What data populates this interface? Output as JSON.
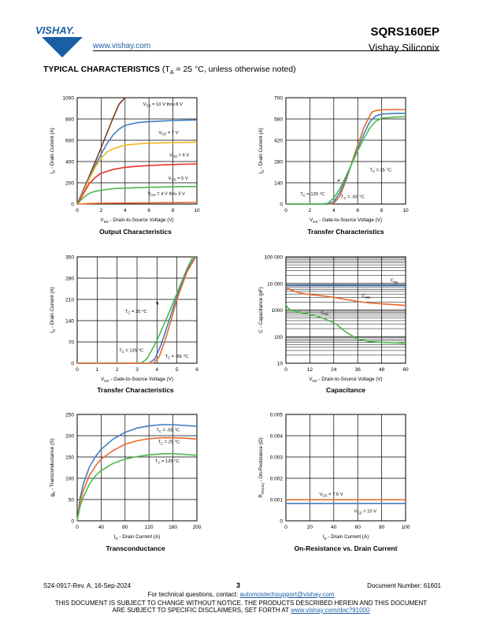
{
  "header": {
    "logo_text": "VISHAY.",
    "url": "www.vishay.com",
    "part_number": "SQRS160EP",
    "company": "Vishay Siliconix"
  },
  "section": {
    "title": "TYPICAL CHARACTERISTICS",
    "condition_prefix": "(T",
    "condition_sub": "A",
    "condition_rest": " = 25 °C, unless otherwise noted)"
  },
  "colors": {
    "blue": "#3e7fc1",
    "orange": "#ea6a2a",
    "gold": "#f2b71f",
    "red": "#e8322c",
    "green": "#4cb848",
    "brown": "#7a3c20",
    "link": "#1f5fa8"
  },
  "chart_data": [
    {
      "id": "output",
      "type": "line",
      "title": "Output Characteristics",
      "xlabel": "V_DS - Drain-to-Source Voltage (V)",
      "ylabel": "I_D - Drain Current (A)",
      "xlim": [
        0,
        10
      ],
      "ylim": [
        0,
        1000
      ],
      "xticks": [
        0,
        2,
        4,
        6,
        8,
        10
      ],
      "yticks": [
        0,
        200,
        400,
        600,
        800,
        1000
      ],
      "grid": true,
      "series": [
        {
          "color": "#7a3c20",
          "x": [
            0,
            0.5,
            1,
            1.5,
            2,
            2.5,
            3,
            3.5,
            4
          ],
          "y": [
            0,
            130,
            260,
            395,
            530,
            670,
            810,
            940,
            1000
          ]
        },
        {
          "color": "#3e7fc1",
          "x": [
            0,
            0.5,
            1,
            1.5,
            2,
            2.5,
            3,
            3.5,
            4,
            5,
            6,
            7,
            8,
            9,
            10
          ],
          "y": [
            0,
            125,
            245,
            360,
            470,
            570,
            650,
            705,
            740,
            765,
            775,
            780,
            785,
            788,
            790
          ]
        },
        {
          "color": "#f2b71f",
          "x": [
            0,
            0.5,
            1,
            1.5,
            2,
            2.5,
            3,
            4,
            5,
            6,
            7,
            8,
            10
          ],
          "y": [
            0,
            110,
            235,
            345,
            430,
            490,
            520,
            555,
            565,
            572,
            575,
            578,
            582
          ]
        },
        {
          "color": "#e8322c",
          "x": [
            0,
            0.5,
            1,
            1.5,
            2,
            3,
            4,
            5,
            6,
            7,
            8,
            10
          ],
          "y": [
            0,
            95,
            190,
            250,
            290,
            325,
            345,
            355,
            362,
            368,
            372,
            378
          ]
        },
        {
          "color": "#4cb848",
          "x": [
            0,
            0.5,
            1,
            1.5,
            2,
            3,
            4,
            5,
            6,
            7,
            8,
            10
          ],
          "y": [
            0,
            60,
            100,
            120,
            130,
            145,
            150,
            155,
            158,
            160,
            162,
            165
          ]
        },
        {
          "color": "#ea6a2a",
          "x": [
            0,
            1,
            2,
            4,
            6,
            8,
            10
          ],
          "y": [
            0,
            5,
            8,
            10,
            12,
            13,
            15
          ]
        }
      ],
      "annotations": [
        {
          "sym": "V",
          "sub": "GS",
          "text": " = 10 V thru 8 V",
          "x": 5.5,
          "y": 925
        },
        {
          "sym": "V",
          "sub": "GS",
          "text": " = 7 V",
          "x": 6.8,
          "y": 660
        },
        {
          "sym": "V",
          "sub": "GS",
          "text": " = 6 V",
          "x": 7.7,
          "y": 450
        },
        {
          "sym": "V",
          "sub": "GS",
          "text": " = 5 V",
          "x": 7.6,
          "y": 230
        },
        {
          "sym": "V",
          "sub": "GS",
          "text": " = 4 V thru 3 V",
          "x": 5.9,
          "y": 85
        }
      ]
    },
    {
      "id": "transfer-1",
      "type": "line",
      "title": "Transfer Characteristics",
      "xlabel": "V_GS - Gate-to-Source Voltage (V)",
      "ylabel": "I_D - Drain Current (A)",
      "xlim": [
        0,
        10
      ],
      "ylim": [
        0,
        700
      ],
      "xticks": [
        0,
        2,
        4,
        6,
        8,
        10
      ],
      "yticks": [
        0,
        140,
        280,
        420,
        560,
        700
      ],
      "grid": true,
      "series": [
        {
          "color": "#ea6a2a",
          "x": [
            0,
            3.7,
            4,
            4.5,
            5,
            5.5,
            6,
            6.5,
            7,
            7.2,
            7.5,
            8,
            9,
            10
          ],
          "y": [
            0,
            0,
            5,
            50,
            150,
            270,
            390,
            500,
            580,
            605,
            615,
            620,
            622,
            622
          ]
        },
        {
          "color": "#3e7fc1",
          "x": [
            0,
            3.5,
            4,
            4.5,
            5,
            5.5,
            6,
            6.5,
            7,
            7.5,
            8,
            9,
            10
          ],
          "y": [
            0,
            0,
            15,
            75,
            165,
            265,
            365,
            460,
            540,
            580,
            592,
            597,
            598
          ]
        },
        {
          "color": "#4cb848",
          "x": [
            0,
            3,
            3.5,
            4,
            4.5,
            5,
            5.5,
            6,
            6.5,
            7,
            7.5,
            8,
            9,
            10
          ],
          "y": [
            0,
            0,
            5,
            40,
            100,
            180,
            265,
            350,
            430,
            500,
            545,
            565,
            572,
            575
          ]
        }
      ],
      "annotations": [
        {
          "sym": "T",
          "sub": "C",
          "text": " = 25 °C",
          "x": 7.0,
          "y": 215
        },
        {
          "sym": "T",
          "sub": "C",
          "text": " = 125 °C",
          "x": 1.2,
          "y": 58
        },
        {
          "sym": "T",
          "sub": "C",
          "text": " = -55 °C",
          "x": 4.6,
          "y": 40
        }
      ]
    },
    {
      "id": "transfer-2",
      "type": "line",
      "title": "Transfer Characteristics",
      "xlabel": "V_GS - Gate-to-Source Voltage (V)",
      "ylabel": "I_D - Drain Current (A)",
      "xlim": [
        0,
        6
      ],
      "ylim": [
        0,
        350
      ],
      "xticks": [
        0,
        1,
        2,
        3,
        4,
        5,
        6
      ],
      "yticks": [
        0,
        70,
        140,
        210,
        280,
        350
      ],
      "grid": true,
      "series": [
        {
          "color": "#4cb848",
          "x": [
            0,
            3.2,
            3.5,
            4,
            4.5,
            5,
            5.5,
            5.8
          ],
          "y": [
            0,
            0,
            15,
            75,
            150,
            230,
            310,
            350
          ]
        },
        {
          "color": "#3e7fc1",
          "x": [
            0,
            3.6,
            3.9,
            4.2,
            4.5,
            5,
            5.5,
            5.9
          ],
          "y": [
            0,
            0,
            15,
            60,
            120,
            220,
            305,
            350
          ]
        },
        {
          "color": "#ea6a2a",
          "x": [
            0,
            3.8,
            4.1,
            4.4,
            4.7,
            5,
            5.5,
            5.95
          ],
          "y": [
            0,
            0,
            20,
            75,
            140,
            210,
            300,
            350
          ]
        }
      ],
      "annotations": [
        {
          "sym": "T",
          "sub": "C",
          "text": " = 25 °C",
          "x": 2.4,
          "y": 166
        },
        {
          "sym": "T",
          "sub": "C",
          "text": " = 125 °C",
          "x": 2.1,
          "y": 38
        },
        {
          "sym": "T",
          "sub": "C",
          "text": " = -55 °C",
          "x": 4.4,
          "y": 18
        }
      ]
    },
    {
      "id": "capacitance",
      "type": "line",
      "title": "Capacitance",
      "xlabel": "V_DS - Drain-to-Source Voltage (V)",
      "ylabel": "C - Capacitance (pF)",
      "xlim": [
        0,
        60
      ],
      "ylim": [
        10,
        100000
      ],
      "yscale": "log",
      "xticks": [
        0,
        12,
        24,
        36,
        48,
        60
      ],
      "yticks": [
        10,
        100,
        1000,
        10000,
        100000
      ],
      "ytick_labels": [
        "10",
        "100",
        "1000",
        "10 000",
        "100 000"
      ],
      "grid": true,
      "series": [
        {
          "name": "C_iss",
          "color": "#3e7fc1",
          "x": [
            0,
            6,
            12,
            20,
            30,
            40,
            50,
            60
          ],
          "y": [
            8600,
            8500,
            8450,
            8400,
            8380,
            8360,
            8340,
            8320
          ]
        },
        {
          "name": "C_oss",
          "color": "#ea6a2a",
          "x": [
            0,
            3,
            6,
            10,
            15,
            20,
            25,
            30,
            36,
            42,
            48,
            54,
            60
          ],
          "y": [
            7000,
            5500,
            4600,
            4000,
            3600,
            3300,
            2900,
            2500,
            2100,
            1850,
            1700,
            1600,
            1500
          ]
        },
        {
          "name": "C_rss",
          "color": "#4cb848",
          "x": [
            0,
            1,
            3,
            6,
            10,
            15,
            20,
            25,
            30,
            36,
            42,
            48,
            54,
            60
          ],
          "y": [
            1600,
            1200,
            950,
            850,
            750,
            600,
            450,
            300,
            150,
            80,
            65,
            60,
            58,
            55
          ]
        }
      ],
      "annotations": [
        {
          "sym": "C",
          "sub": "iss",
          "text": "",
          "x": 52.5,
          "y": 11500
        },
        {
          "sym": "C",
          "sub": "oss",
          "text": "",
          "x": 38,
          "y": 2950
        },
        {
          "sym": "C",
          "sub": "rss",
          "text": "",
          "x": 17.5,
          "y": 720
        }
      ]
    },
    {
      "id": "transconductance",
      "type": "line",
      "title": "Transconductance",
      "xlabel": "I_D - Drain Current (A)",
      "ylabel": "g_fs - Transconductance (S)",
      "xlim": [
        0,
        200
      ],
      "ylim": [
        0,
        250
      ],
      "xticks": [
        0,
        40,
        80,
        120,
        160,
        200
      ],
      "yticks": [
        0,
        50,
        100,
        150,
        200,
        250
      ],
      "grid": true,
      "series": [
        {
          "color": "#3e7fc1",
          "x": [
            0,
            5,
            10,
            20,
            30,
            40,
            60,
            80,
            100,
            120,
            140,
            160,
            180,
            200
          ],
          "y": [
            0,
            55,
            85,
            125,
            150,
            168,
            192,
            208,
            218,
            223,
            226,
            226,
            224,
            222
          ]
        },
        {
          "color": "#ea6a2a",
          "x": [
            0,
            5,
            10,
            20,
            30,
            40,
            60,
            80,
            100,
            120,
            140,
            160,
            180,
            200
          ],
          "y": [
            0,
            45,
            70,
            105,
            128,
            145,
            165,
            180,
            188,
            193,
            195,
            195,
            194,
            192
          ]
        },
        {
          "color": "#4cb848",
          "x": [
            0,
            5,
            10,
            20,
            30,
            40,
            60,
            80,
            100,
            120,
            140,
            160,
            180,
            200
          ],
          "y": [
            0,
            35,
            55,
            85,
            105,
            118,
            135,
            145,
            151,
            155,
            157,
            158,
            156,
            154
          ]
        }
      ],
      "annotations": [
        {
          "sym": "T",
          "sub": "C",
          "text": " = -55 °C",
          "x": 132,
          "y": 210
        },
        {
          "sym": "T",
          "sub": "C",
          "text": " = 25 °C",
          "x": 135,
          "y": 182
        },
        {
          "sym": "T",
          "sub": "C",
          "text": " = 125 °C",
          "x": 130,
          "y": 137
        }
      ]
    },
    {
      "id": "on-resistance",
      "type": "line",
      "title": "On-Resistance vs. Drain Current",
      "xlabel": "I_D - Drain Current (A)",
      "ylabel": "R_DS(on) - On-Resistance (Ω)",
      "xlim": [
        0,
        100
      ],
      "ylim": [
        0,
        0.005
      ],
      "xticks": [
        0,
        20,
        40,
        60,
        80,
        100
      ],
      "ytick_labels": [
        "0",
        "0.001",
        "0.002",
        "0.003",
        "0.004",
        "0.005"
      ],
      "yticks": [
        0,
        0.001,
        0.002,
        0.003,
        0.004,
        0.005
      ],
      "grid": true,
      "series": [
        {
          "color": "#ea6a2a",
          "x": [
            0,
            20,
            40,
            60,
            80,
            100
          ],
          "y": [
            0.00099,
            0.00099,
            0.00099,
            0.00099,
            0.00099,
            0.00099
          ]
        },
        {
          "color": "#3e7fc1",
          "x": [
            0,
            20,
            40,
            60,
            80,
            100
          ],
          "y": [
            0.00081,
            0.00081,
            0.00081,
            0.00081,
            0.00081,
            0.00081
          ]
        }
      ],
      "annotations": [
        {
          "sym": "V",
          "sub": "GS",
          "text": " = 7.5 V",
          "x": 28,
          "y": 0.00118
        },
        {
          "sym": "V",
          "sub": "GS",
          "text": " = 10 V",
          "x": 57,
          "y": 0.00038
        }
      ]
    }
  ],
  "footer": {
    "revision": "S24-0917-Rev. A, 16-Sep-2024",
    "page": "3",
    "document_number": "Document Number: 61601",
    "tech_prefix": "For technical questions, contact: ",
    "tech_email": "automostechsupport@vishay.com",
    "notice_line1": "THIS DOCUMENT IS SUBJECT TO CHANGE WITHOUT NOTICE. THE PRODUCTS DESCRIBED HEREIN AND THIS DOCUMENT",
    "notice_line2_prefix": "ARE SUBJECT TO SPECIFIC DISCLAIMERS, SET FORTH AT ",
    "notice_link": "www.vishay.com/doc?91000"
  }
}
